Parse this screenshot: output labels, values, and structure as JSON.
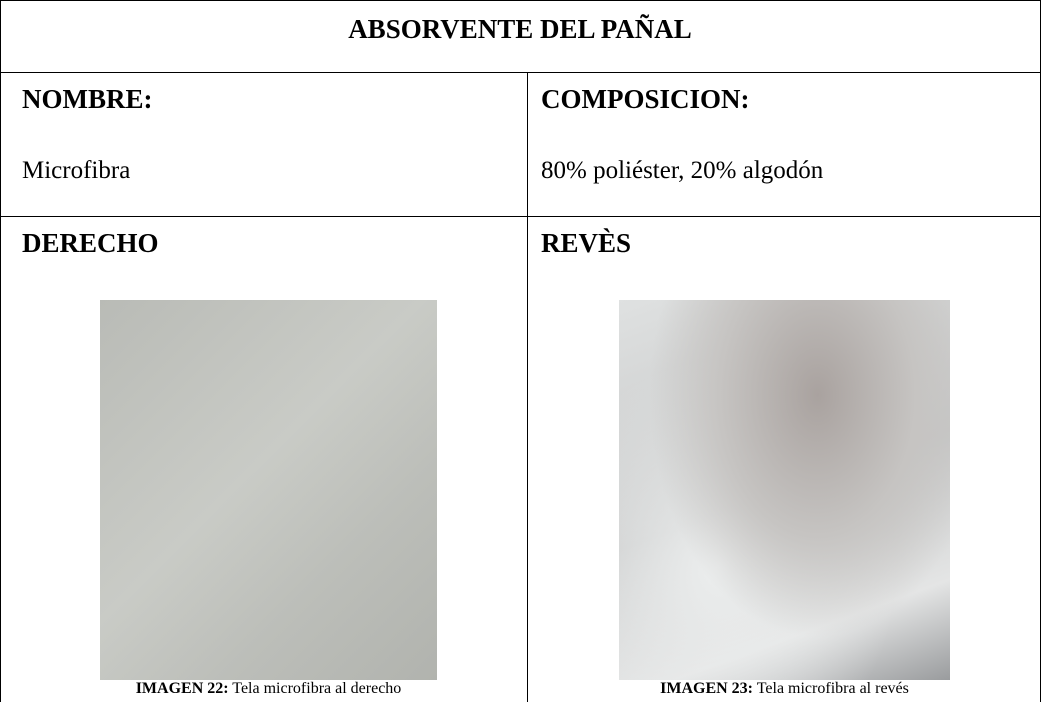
{
  "table": {
    "title": "ABSORVENTE DEL PAÑAL",
    "rows": [
      [
        {
          "label": "NOMBRE:",
          "value": "Microfibra"
        },
        {
          "label": "COMPOSICION:",
          "value": "80% poliéster, 20% algodón"
        }
      ],
      [
        {
          "label": "DERECHO",
          "caption_label": "IMAGEN 22:",
          "caption_text": "Tela microfibra al derecho"
        },
        {
          "label": "REVÈS",
          "caption_label": "IMAGEN 23:",
          "caption_text": "Tela microfibra al revés"
        }
      ]
    ]
  }
}
